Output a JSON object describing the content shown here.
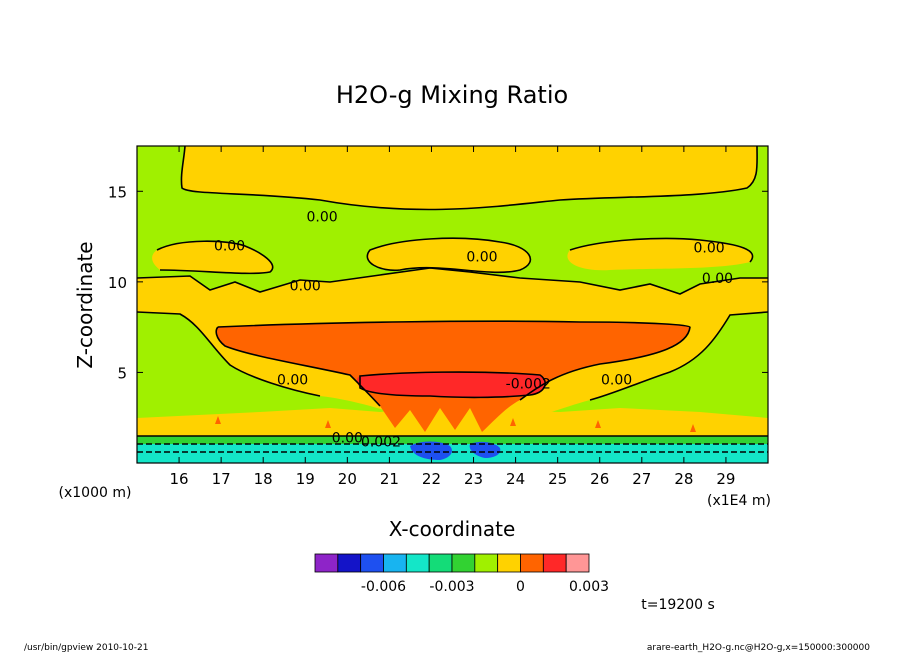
{
  "chart_data": {
    "type": "heatmap",
    "title": "H2O-g Mixing Ratio",
    "xlabel": "X-coordinate",
    "ylabel": "Z-coordinate",
    "x_unit_note": "(x1E4 m)",
    "y_unit_note": "(x1000 m)",
    "xlim": [
      15.0,
      30.0
    ],
    "ylim": [
      0.0,
      17.5
    ],
    "x_ticks": [
      16,
      17,
      18,
      19,
      20,
      21,
      22,
      23,
      24,
      25,
      26,
      27,
      28,
      29
    ],
    "y_ticks": [
      5,
      10,
      15
    ],
    "contour_labels": [
      {
        "text": "0.00",
        "x": 19.4,
        "y": 13.6
      },
      {
        "text": "0.00",
        "x": 17.2,
        "y": 12.0
      },
      {
        "text": "0.00",
        "x": 23.2,
        "y": 11.4
      },
      {
        "text": "0.00",
        "x": 28.6,
        "y": 11.9
      },
      {
        "text": "0.00",
        "x": 19.0,
        "y": 9.8
      },
      {
        "text": "0.00",
        "x": 28.8,
        "y": 10.2
      },
      {
        "text": "0.00",
        "x": 18.7,
        "y": 4.6
      },
      {
        "text": "-0.002",
        "x": 24.3,
        "y": 4.4
      },
      {
        "text": "0.00",
        "x": 26.4,
        "y": 4.6
      },
      {
        "text": "0.00",
        "x": 20.0,
        "y": 1.4
      },
      {
        "text": "0.002",
        "x": 20.8,
        "y": 1.2
      }
    ],
    "colorbar": {
      "colors": [
        "#8e24c8",
        "#1414c8",
        "#1e50f0",
        "#18b4f0",
        "#14e6c8",
        "#14dc78",
        "#32d232",
        "#a0f000",
        "#ffd200",
        "#ff6400",
        "#ff2828",
        "#ff9696"
      ],
      "tick_labels": [
        "-0.006",
        "-0.003",
        "0",
        "0.003"
      ],
      "tick_values": [
        -0.006,
        -0.003,
        0,
        0.003
      ],
      "range": [
        -0.009,
        0.003
      ]
    },
    "grid": false,
    "legend": "colorbar-bottom"
  },
  "annotations": {
    "time": "t=19200 s",
    "footer_left": "/usr/bin/gpview   2010-10-21",
    "footer_right": "arare-earth_H2O-g.nc@H2O-g,x=150000:300000"
  }
}
